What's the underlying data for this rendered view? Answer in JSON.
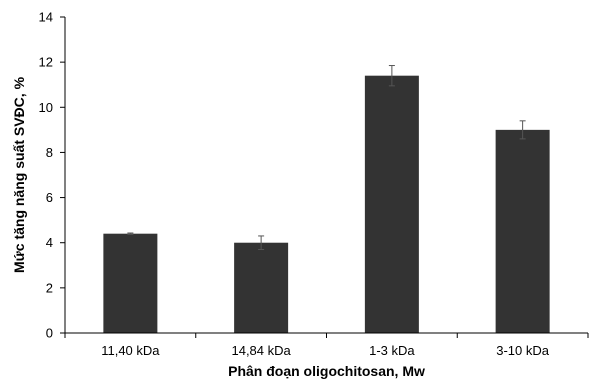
{
  "chart_data": {
    "type": "bar",
    "categories": [
      "11,40 kDa",
      "14,84 kDa",
      "1-3 kDa",
      "3-10 kDa"
    ],
    "values": [
      4.4,
      4.0,
      11.4,
      9.0
    ],
    "errors": [
      0.03,
      0.3,
      0.45,
      0.4
    ],
    "title": "",
    "xlabel": "Phân đoạn oligochitosan, Mw",
    "ylabel": "Mức tăng năng suất SVĐC, %",
    "ylim": [
      0,
      14
    ],
    "yticks": [
      0,
      2,
      4,
      6,
      8,
      10,
      12,
      14
    ],
    "grid": false,
    "legend": "none",
    "bar_color": "#333333"
  }
}
